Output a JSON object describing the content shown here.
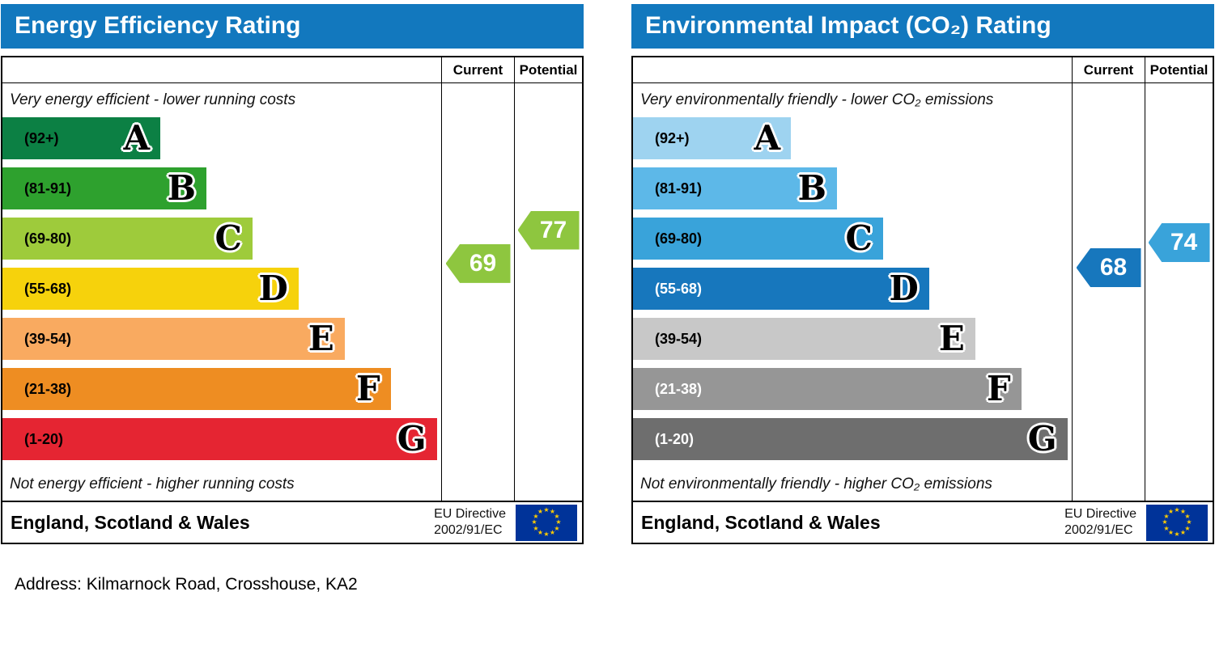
{
  "page": {
    "address": "Address: Kilmarnock Road, Crosshouse, KA2"
  },
  "chart_data": [
    {
      "type": "bar",
      "subtype": "epc-rating-bands",
      "title": "Energy Efficiency Rating",
      "columns": {
        "current": "Current",
        "potential": "Potential"
      },
      "top_caption": "Very energy efficient - lower running costs",
      "bottom_caption": "Not energy efficient - higher running costs",
      "scale": {
        "min": 1,
        "max": 100,
        "best": "A",
        "worst": "G"
      },
      "bands": [
        {
          "letter": "A",
          "range_label": "(92+)",
          "min": 92,
          "max": 100,
          "color": "#0c8044",
          "text_color": "#000000",
          "width_pct": 36
        },
        {
          "letter": "B",
          "range_label": "(81-91)",
          "min": 81,
          "max": 91,
          "color": "#2ea12e",
          "text_color": "#000000",
          "width_pct": 46.5
        },
        {
          "letter": "C",
          "range_label": "(69-80)",
          "min": 69,
          "max": 80,
          "color": "#9ecb3b",
          "text_color": "#000000",
          "width_pct": 57
        },
        {
          "letter": "D",
          "range_label": "(55-68)",
          "min": 55,
          "max": 68,
          "color": "#f6d20c",
          "text_color": "#000000",
          "width_pct": 67.5
        },
        {
          "letter": "E",
          "range_label": "(39-54)",
          "min": 39,
          "max": 54,
          "color": "#f9aa60",
          "text_color": "#000000",
          "width_pct": 78
        },
        {
          "letter": "F",
          "range_label": "(21-38)",
          "min": 21,
          "max": 38,
          "color": "#ee8d22",
          "text_color": "#000000",
          "width_pct": 88.5
        },
        {
          "letter": "G",
          "range_label": "(1-20)",
          "min": 1,
          "max": 20,
          "color": "#e52532",
          "text_color": "#000000",
          "width_pct": 99
        }
      ],
      "current": {
        "value": 69,
        "band": "C",
        "color": "#8ec63f"
      },
      "potential": {
        "value": 77,
        "band": "C",
        "color": "#8ec63f"
      },
      "footer": {
        "region": "England, Scotland & Wales",
        "directive_line1": "EU Directive",
        "directive_line2": "2002/91/EC",
        "flag": "eu-flag"
      }
    },
    {
      "type": "bar",
      "subtype": "epc-rating-bands",
      "title": "Environmental Impact (CO₂) Rating",
      "columns": {
        "current": "Current",
        "potential": "Potential"
      },
      "top_caption": "Very environmentally friendly - lower CO₂ emissions",
      "bottom_caption": "Not environmentally friendly - higher CO₂ emissions",
      "scale": {
        "min": 1,
        "max": 100,
        "best": "A",
        "worst": "G"
      },
      "bands": [
        {
          "letter": "A",
          "range_label": "(92+)",
          "min": 92,
          "max": 100,
          "color": "#9ed3f0",
          "text_color": "#000000",
          "width_pct": 36
        },
        {
          "letter": "B",
          "range_label": "(81-91)",
          "min": 81,
          "max": 91,
          "color": "#5db8e8",
          "text_color": "#000000",
          "width_pct": 46.5
        },
        {
          "letter": "C",
          "range_label": "(69-80)",
          "min": 69,
          "max": 80,
          "color": "#39a3da",
          "text_color": "#000000",
          "width_pct": 57
        },
        {
          "letter": "D",
          "range_label": "(55-68)",
          "min": 55,
          "max": 68,
          "color": "#1777bd",
          "text_color": "#ffffff",
          "width_pct": 67.5
        },
        {
          "letter": "E",
          "range_label": "(39-54)",
          "min": 39,
          "max": 54,
          "color": "#c8c8c8",
          "text_color": "#000000",
          "width_pct": 78
        },
        {
          "letter": "F",
          "range_label": "(21-38)",
          "min": 21,
          "max": 38,
          "color": "#969696",
          "text_color": "#ffffff",
          "width_pct": 88.5
        },
        {
          "letter": "G",
          "range_label": "(1-20)",
          "min": 1,
          "max": 20,
          "color": "#6e6e6e",
          "text_color": "#ffffff",
          "width_pct": 99
        }
      ],
      "current": {
        "value": 68,
        "band": "D",
        "color": "#1777bd"
      },
      "potential": {
        "value": 74,
        "band": "C",
        "color": "#39a3da"
      },
      "footer": {
        "region": "England, Scotland & Wales",
        "directive_line1": "EU Directive",
        "directive_line2": "2002/91/EC",
        "flag": "eu-flag"
      }
    }
  ]
}
